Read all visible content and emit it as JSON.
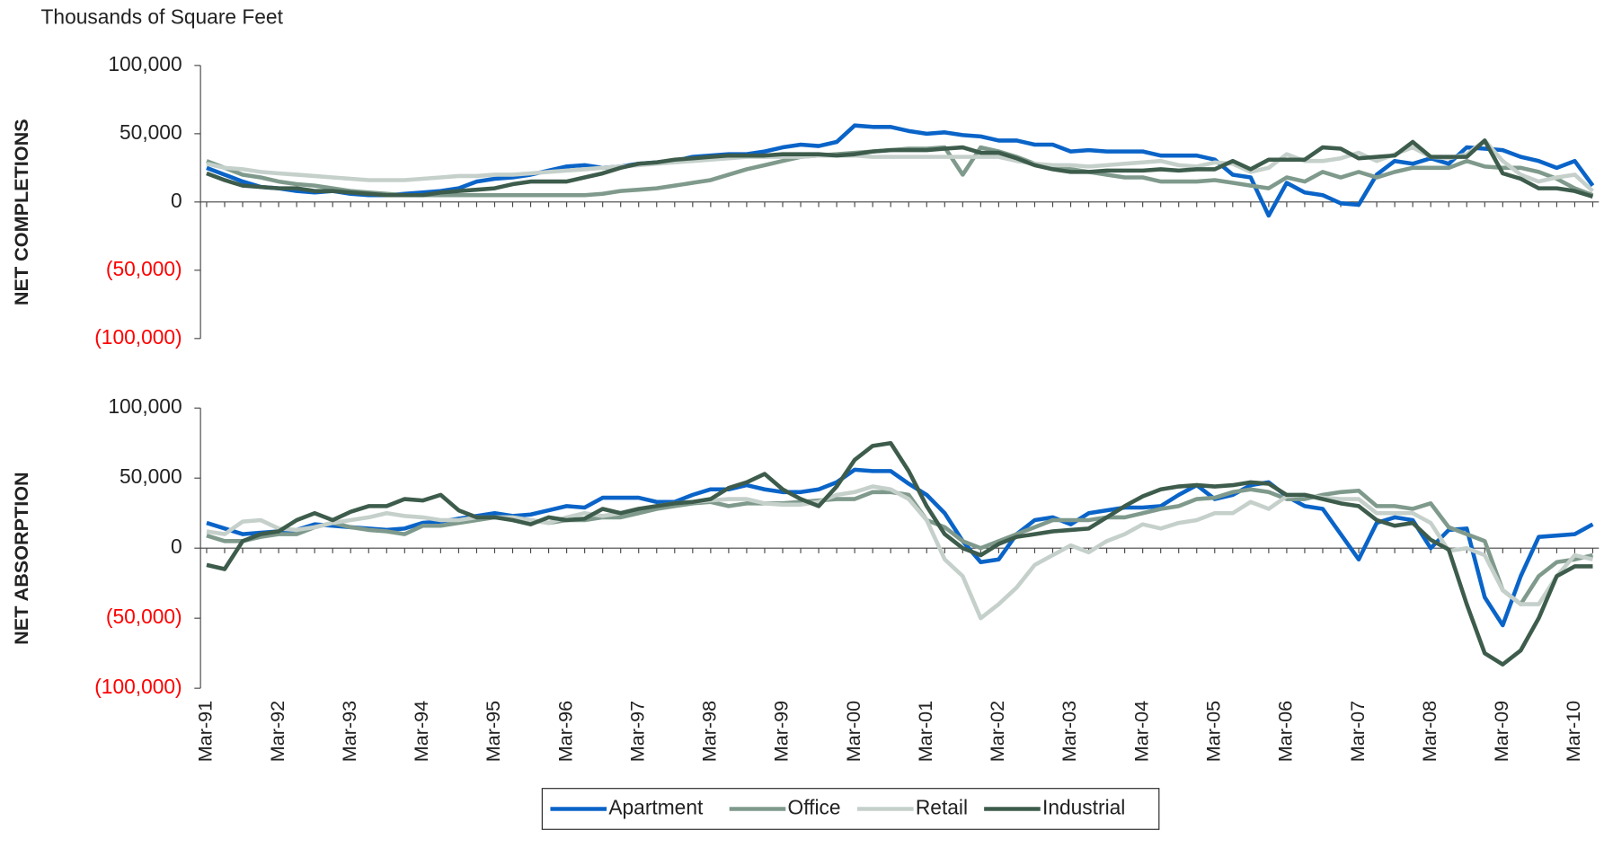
{
  "unit_label": "Thousands of Square Feet",
  "chart_data": [
    {
      "type": "line",
      "y_title": "NET COMPLETIONS",
      "ylim": [
        -100000,
        100000
      ],
      "yticks": [
        {
          "value": -100000,
          "label": "(100,000)"
        },
        {
          "value": -50000,
          "label": "(50,000)"
        },
        0,
        {
          "value": 50000,
          "label": "50,000"
        },
        {
          "value": 100000,
          "label": "100,000"
        }
      ],
      "negative_tick_color": "#ff0000",
      "series": [
        {
          "color": "#0a64c8",
          "values": [
            25000,
            20000,
            15000,
            11000,
            10000,
            8000,
            7000,
            8000,
            6000,
            5000,
            5000,
            6000,
            7000,
            8000,
            10000,
            15000,
            17000,
            18000,
            20000,
            23000,
            26000,
            27000,
            25000,
            26000,
            28000,
            29000,
            30000,
            33000,
            34000,
            35000,
            35000,
            37000,
            40000,
            42000,
            41000,
            44000,
            56000,
            55000,
            55000,
            52000,
            50000,
            51000,
            49000,
            48000,
            45000,
            45000,
            42000,
            42000,
            37000,
            38000,
            37000,
            37000,
            37000,
            34000,
            34000,
            34000,
            31000,
            20000,
            18000,
            -10000,
            14000,
            7000,
            5000,
            -1000,
            -2000,
            20000,
            30000,
            28000,
            32000,
            28000,
            40000,
            39000,
            38000,
            33000,
            30000,
            25000,
            30000,
            12000
          ]
        },
        {
          "color": "#7f9a8c",
          "values": [
            30000,
            25000,
            20000,
            18000,
            15000,
            13000,
            12000,
            10000,
            8000,
            7000,
            6000,
            5000,
            5000,
            5000,
            5000,
            5000,
            5000,
            5000,
            5000,
            5000,
            5000,
            5000,
            6000,
            8000,
            9000,
            10000,
            12000,
            14000,
            16000,
            20000,
            24000,
            27000,
            30000,
            33000,
            34000,
            35000,
            36000,
            37000,
            38000,
            39000,
            39000,
            40000,
            20000,
            40000,
            37000,
            33000,
            28000,
            26000,
            24000,
            22000,
            20000,
            18000,
            18000,
            15000,
            15000,
            15000,
            16000,
            14000,
            12000,
            10000,
            18000,
            15000,
            22000,
            18000,
            22000,
            18000,
            22000,
            25000,
            25000,
            25000,
            30000,
            26000,
            25000,
            25000,
            22000,
            17000,
            10000,
            5000
          ]
        },
        {
          "color": "#c5d0cb",
          "values": [
            28000,
            25000,
            24000,
            22000,
            21000,
            20000,
            19000,
            18000,
            17000,
            16000,
            16000,
            16000,
            17000,
            18000,
            19000,
            19000,
            20000,
            20000,
            21000,
            22000,
            23000,
            24000,
            25000,
            26000,
            27000,
            28000,
            29000,
            30000,
            31000,
            32000,
            33000,
            33000,
            33000,
            33000,
            34000,
            34000,
            34000,
            33000,
            33000,
            33000,
            33000,
            33000,
            33000,
            33000,
            33000,
            30000,
            28000,
            27000,
            27000,
            26000,
            27000,
            28000,
            29000,
            30000,
            27000,
            26000,
            29000,
            28000,
            22000,
            25000,
            35000,
            30000,
            30000,
            32000,
            36000,
            30000,
            35000,
            40000,
            33000,
            32000,
            35000,
            45000,
            30000,
            20000,
            15000,
            18000,
            20000,
            8000
          ]
        },
        {
          "color": "#3d5c4c",
          "values": [
            21000,
            16000,
            12000,
            11000,
            10000,
            10000,
            8000,
            8000,
            7000,
            6000,
            5000,
            5000,
            5000,
            7000,
            8000,
            9000,
            10000,
            13000,
            15000,
            15000,
            15000,
            18000,
            21000,
            25000,
            28000,
            29000,
            31000,
            32000,
            33000,
            34000,
            34000,
            34000,
            35000,
            35000,
            35000,
            34000,
            35000,
            37000,
            38000,
            38000,
            38000,
            39000,
            40000,
            36000,
            36000,
            32000,
            27000,
            24000,
            22000,
            22000,
            23000,
            23000,
            23000,
            24000,
            23000,
            24000,
            24000,
            30000,
            24000,
            31000,
            31000,
            31000,
            40000,
            39000,
            32000,
            33000,
            34000,
            44000,
            33000,
            33000,
            33000,
            45000,
            21000,
            17000,
            10000,
            10000,
            8000,
            4000
          ]
        }
      ]
    },
    {
      "type": "line",
      "y_title": "NET ABSORPTION",
      "ylim": [
        -100000,
        100000
      ],
      "yticks": [
        {
          "value": -100000,
          "label": "(100,000)"
        },
        {
          "value": -50000,
          "label": "(50,000)"
        },
        0,
        {
          "value": 50000,
          "label": "50,000"
        },
        {
          "value": 100000,
          "label": "100,000"
        }
      ],
      "negative_tick_color": "#ff0000",
      "categories": [
        "Mar-91",
        null,
        null,
        null,
        "Mar-92",
        null,
        null,
        null,
        "Mar-93",
        null,
        null,
        null,
        "Mar-94",
        null,
        null,
        null,
        "Mar-95",
        null,
        null,
        null,
        "Mar-96",
        null,
        null,
        null,
        "Mar-97",
        null,
        null,
        null,
        "Mar-98",
        null,
        null,
        null,
        "Mar-99",
        null,
        null,
        null,
        "Mar-00",
        null,
        null,
        null,
        "Mar-01",
        null,
        null,
        null,
        "Mar-02",
        null,
        null,
        null,
        "Mar-03",
        null,
        null,
        null,
        "Mar-04",
        null,
        null,
        null,
        "Mar-05",
        null,
        null,
        null,
        "Mar-06",
        null,
        null,
        null,
        "Mar-07",
        null,
        null,
        null,
        "Mar-08",
        null,
        null,
        null,
        "Mar-09",
        null,
        null,
        null,
        "Mar-10",
        null
      ],
      "series": [
        {
          "name": "Apartment",
          "color": "#0a64c8",
          "values": [
            18000,
            14000,
            10000,
            11000,
            12000,
            13000,
            17000,
            16000,
            15000,
            14000,
            13000,
            14000,
            18000,
            19000,
            21000,
            23000,
            25000,
            23000,
            24000,
            27000,
            30000,
            29000,
            36000,
            36000,
            36000,
            33000,
            33000,
            38000,
            42000,
            42000,
            45000,
            42000,
            40000,
            40000,
            42000,
            47000,
            56000,
            55000,
            55000,
            46000,
            38000,
            25000,
            5000,
            -10000,
            -8000,
            10000,
            20000,
            22000,
            17000,
            25000,
            27000,
            29000,
            29000,
            30000,
            38000,
            45000,
            35000,
            38000,
            45000,
            47000,
            37000,
            30000,
            28000,
            10000,
            -8000,
            18000,
            22000,
            20000,
            0,
            13000,
            14000,
            -35000,
            -55000,
            -20000,
            8000,
            9000,
            10000,
            17000
          ]
        },
        {
          "name": "Office",
          "color": "#7f9a8c",
          "values": [
            9000,
            5000,
            5000,
            8000,
            10000,
            10000,
            15000,
            18000,
            15000,
            13000,
            12000,
            10000,
            16000,
            16000,
            18000,
            20000,
            22000,
            22000,
            20000,
            18000,
            20000,
            20000,
            22000,
            22000,
            25000,
            28000,
            30000,
            32000,
            33000,
            30000,
            32000,
            32000,
            32000,
            33000,
            34000,
            35000,
            35000,
            40000,
            40000,
            38000,
            20000,
            15000,
            5000,
            0,
            5000,
            10000,
            15000,
            20000,
            20000,
            20000,
            22000,
            22000,
            25000,
            28000,
            30000,
            35000,
            36000,
            40000,
            42000,
            40000,
            35000,
            35000,
            38000,
            40000,
            41000,
            30000,
            30000,
            28000,
            32000,
            15000,
            10000,
            5000,
            -30000,
            -40000,
            -20000,
            -10000,
            -8000,
            -5000
          ]
        },
        {
          "name": "Retail",
          "color": "#c5d0cb",
          "values": [
            12000,
            10000,
            19000,
            20000,
            14000,
            13000,
            15000,
            18000,
            20000,
            22000,
            25000,
            23000,
            22000,
            20000,
            20000,
            22000,
            22000,
            22000,
            20000,
            18000,
            22000,
            25000,
            23000,
            25000,
            28000,
            30000,
            32000,
            33000,
            34000,
            35000,
            35000,
            32000,
            31000,
            31000,
            33000,
            38000,
            40000,
            44000,
            42000,
            35000,
            20000,
            -8000,
            -20000,
            -50000,
            -40000,
            -28000,
            -12000,
            -5000,
            2000,
            -3000,
            5000,
            10000,
            17000,
            14000,
            18000,
            20000,
            25000,
            25000,
            33000,
            28000,
            37000,
            38000,
            36000,
            35000,
            35000,
            25000,
            25000,
            25000,
            18000,
            -2000,
            0,
            -5000,
            -30000,
            -40000,
            -40000,
            -20000,
            -5000,
            -8000
          ]
        },
        {
          "name": "Industrial",
          "color": "#3d5c4c",
          "values": [
            -12000,
            -15000,
            5000,
            10000,
            12000,
            20000,
            25000,
            20000,
            26000,
            30000,
            30000,
            35000,
            34000,
            38000,
            27000,
            22000,
            22000,
            20000,
            17000,
            22000,
            20000,
            21000,
            28000,
            25000,
            28000,
            30000,
            32000,
            33000,
            35000,
            43000,
            47000,
            53000,
            42000,
            35000,
            30000,
            44000,
            63000,
            73000,
            75000,
            55000,
            30000,
            10000,
            0,
            -5000,
            3000,
            8000,
            10000,
            12000,
            13000,
            14000,
            22000,
            30000,
            37000,
            42000,
            44000,
            45000,
            44000,
            45000,
            47000,
            46000,
            38000,
            38000,
            35000,
            32000,
            30000,
            20000,
            16000,
            18000,
            6000,
            -1000,
            -40000,
            -75000,
            -83000,
            -73000,
            -50000,
            -20000,
            -13000,
            -13000
          ]
        }
      ]
    }
  ]
}
